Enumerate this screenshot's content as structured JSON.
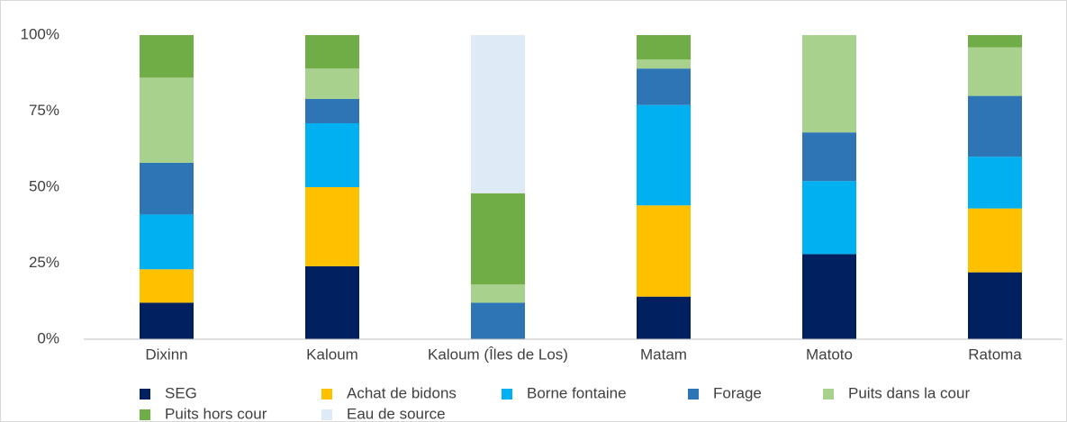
{
  "chart_data": {
    "type": "stacked_bar",
    "categories": [
      "Dixinn",
      "Kaloum",
      "Kaloum (Îles de Los)",
      "Matam",
      "Matoto",
      "Ratoma"
    ],
    "series": [
      {
        "name": "SEG",
        "color": "#002060",
        "values": [
          12,
          24,
          0,
          14,
          28,
          22
        ]
      },
      {
        "name": "Achat de bidons",
        "color": "#FFC000",
        "values": [
          11,
          26,
          0,
          30,
          0,
          21
        ]
      },
      {
        "name": "Borne fontaine",
        "color": "#00B0F0",
        "values": [
          18,
          21,
          0,
          33,
          24,
          17
        ]
      },
      {
        "name": "Forage",
        "color": "#2E75B6",
        "values": [
          17,
          8,
          12,
          12,
          16,
          20
        ]
      },
      {
        "name": "Puits dans la cour",
        "color": "#A9D18E",
        "values": [
          28,
          10,
          6,
          3,
          32,
          16
        ]
      },
      {
        "name": "Puits hors cour",
        "color": "#70AD47",
        "values": [
          14,
          11,
          30,
          8,
          0,
          4
        ]
      },
      {
        "name": "Eau de source",
        "color": "#DEEBF7",
        "values": [
          0,
          0,
          52,
          0,
          0,
          0
        ]
      }
    ],
    "ylim": [
      0,
      100
    ],
    "yticks": [
      {
        "value": 0,
        "label": "0%"
      },
      {
        "value": 25,
        "label": "25%"
      },
      {
        "value": 50,
        "label": "50%"
      },
      {
        "value": 75,
        "label": "75%"
      },
      {
        "value": 100,
        "label": "100%"
      }
    ],
    "legend": "bottom"
  }
}
